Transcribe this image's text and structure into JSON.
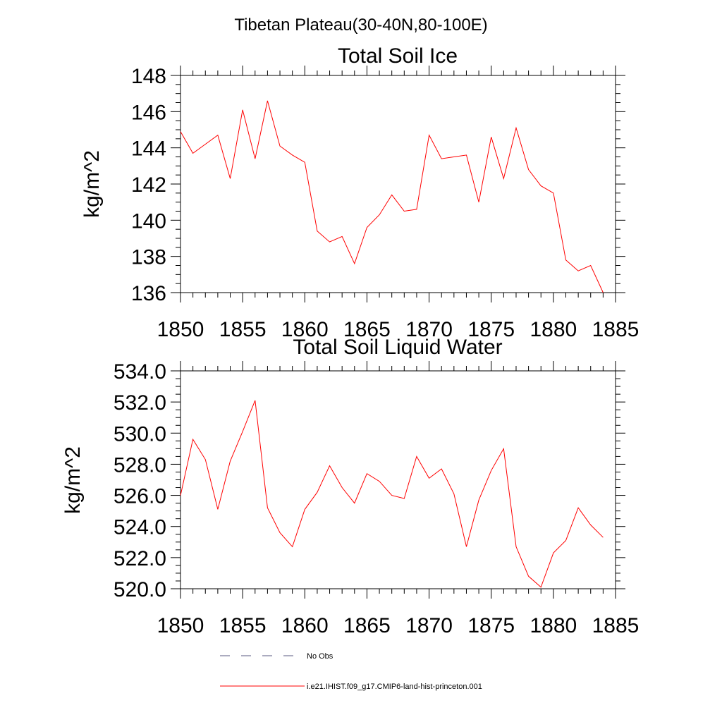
{
  "figure": {
    "title": "Tibetan Plateau(30-40N,80-100E)"
  },
  "chart_data": [
    {
      "type": "line",
      "title": "Total Soil Ice",
      "xlabel": "",
      "ylabel": "kg/m^2",
      "xlim": [
        1850,
        1885
      ],
      "ylim": [
        136,
        148
      ],
      "xticks": [
        "1850",
        "1855",
        "1860",
        "1865",
        "1870",
        "1875",
        "1880",
        "1885"
      ],
      "yticks": [
        "136",
        "138",
        "140",
        "142",
        "144",
        "146",
        "148"
      ],
      "color": "#ff0000",
      "x": [
        1850,
        1851,
        1852,
        1853,
        1854,
        1855,
        1856,
        1857,
        1858,
        1859,
        1860,
        1861,
        1862,
        1863,
        1864,
        1865,
        1866,
        1867,
        1868,
        1869,
        1870,
        1871,
        1872,
        1873,
        1874,
        1875,
        1876,
        1877,
        1878,
        1879,
        1880,
        1881,
        1882,
        1883,
        1884
      ],
      "values": [
        144.9,
        143.7,
        144.2,
        144.7,
        142.3,
        146.1,
        143.4,
        146.6,
        144.1,
        143.6,
        143.2,
        139.4,
        138.8,
        139.1,
        137.6,
        139.6,
        140.3,
        141.4,
        140.5,
        140.6,
        144.7,
        143.4,
        143.5,
        143.6,
        141.0,
        144.6,
        142.3,
        145.1,
        142.8,
        141.9,
        141.5,
        137.8,
        137.2,
        137.5,
        136.0
      ],
      "grid": false
    },
    {
      "type": "line",
      "title": "Total Soil Liquid Water",
      "xlabel": "",
      "ylabel": "kg/m^2",
      "xlim": [
        1850,
        1885
      ],
      "ylim": [
        520,
        534
      ],
      "xticks": [
        "1850",
        "1855",
        "1860",
        "1865",
        "1870",
        "1875",
        "1880",
        "1885"
      ],
      "yticks": [
        "520.0",
        "522.0",
        "524.0",
        "526.0",
        "528.0",
        "530.0",
        "532.0",
        "534.0"
      ],
      "color": "#ff0000",
      "x": [
        1850,
        1851,
        1852,
        1853,
        1854,
        1855,
        1856,
        1857,
        1858,
        1859,
        1860,
        1861,
        1862,
        1863,
        1864,
        1865,
        1866,
        1867,
        1868,
        1869,
        1870,
        1871,
        1872,
        1873,
        1874,
        1875,
        1876,
        1877,
        1878,
        1879,
        1880,
        1881,
        1882,
        1883,
        1884
      ],
      "values": [
        526.0,
        529.6,
        528.3,
        525.1,
        528.2,
        530.1,
        532.1,
        525.2,
        523.6,
        522.7,
        525.1,
        526.2,
        527.9,
        526.5,
        525.5,
        527.4,
        526.9,
        526.0,
        525.8,
        528.5,
        527.1,
        527.7,
        526.1,
        522.7,
        525.7,
        527.6,
        529.0,
        522.7,
        520.8,
        520.1,
        522.3,
        523.1,
        525.2,
        524.1,
        523.3
      ],
      "grid": false
    }
  ],
  "legend": {
    "position": "bottom",
    "entries": [
      {
        "label": "No Obs",
        "style": "dashed",
        "color": "#5a5a82"
      },
      {
        "label": "i.e21.IHIST.f09_g17.CMIP6-land-hist-princeton.001",
        "style": "solid",
        "color": "#ff0000"
      }
    ]
  }
}
